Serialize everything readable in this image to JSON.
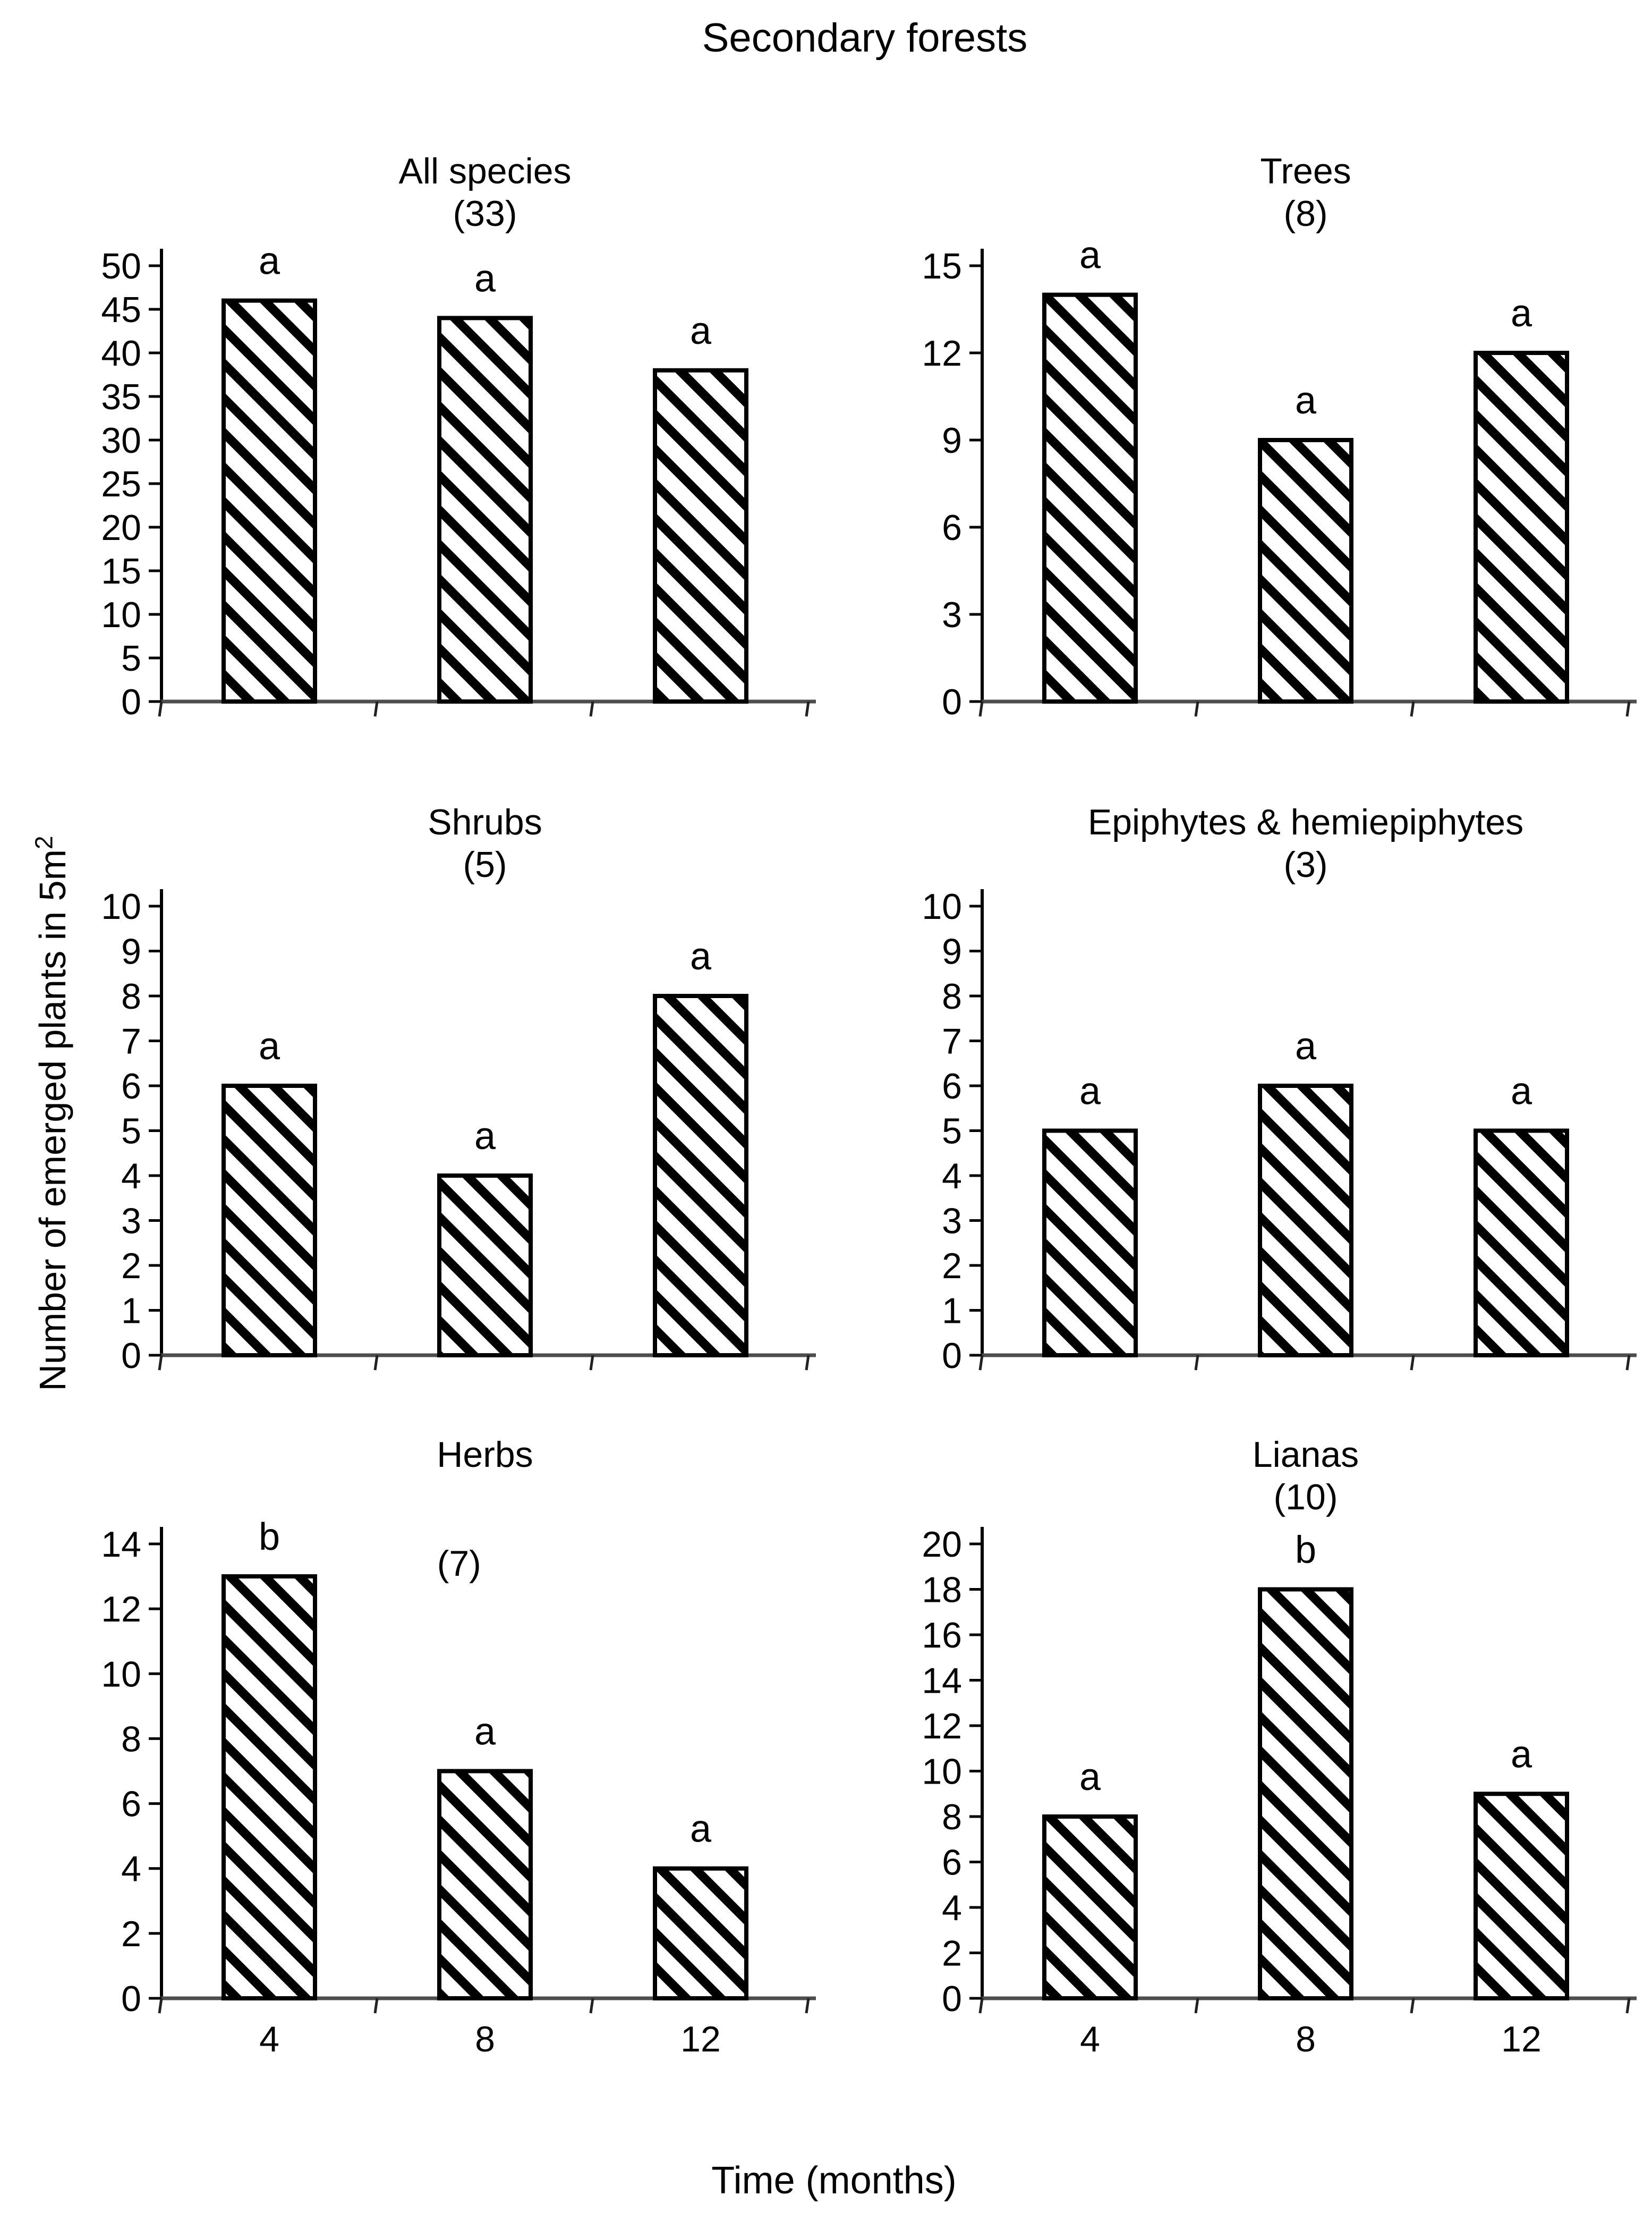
{
  "figure_title": "Secondary forests",
  "axes": {
    "y_label": {
      "text": "Number of emerged plants in 5m",
      "superscript": "2"
    },
    "x_label": "Time (months)"
  },
  "style": {
    "ink_color": "#000000",
    "paper_color": "#ffffff",
    "baseline_color": "#4d4d4d",
    "bar_fill": "diagonal-hatch"
  },
  "chart_data": [
    {
      "type": "bar",
      "title": "All species",
      "annotation_count": "(33)",
      "count_position": "above",
      "categories": [
        "4",
        "8",
        "12"
      ],
      "values": [
        46,
        44,
        38
      ],
      "significance_letters": [
        "a",
        "a",
        "a"
      ],
      "ylim": [
        0,
        50
      ],
      "ytick_step": 5,
      "y_tick_labels": [
        "0",
        "5",
        "10",
        "15",
        "20",
        "25",
        "30",
        "35",
        "40",
        "45",
        "50"
      ],
      "x_labels_visible": false
    },
    {
      "type": "bar",
      "title": "Trees",
      "annotation_count": "(8)",
      "count_position": "above",
      "categories": [
        "4",
        "8",
        "12"
      ],
      "values": [
        14,
        9,
        12
      ],
      "significance_letters": [
        "a",
        "a",
        "a"
      ],
      "ylim": [
        0,
        15
      ],
      "ytick_step": 3,
      "y_tick_labels": [
        "0",
        "3",
        "6",
        "9",
        "12",
        "15"
      ],
      "x_labels_visible": false
    },
    {
      "type": "bar",
      "title": "Shrubs",
      "annotation_count": "(5)",
      "count_position": "above",
      "categories": [
        "4",
        "8",
        "12"
      ],
      "values": [
        6,
        4,
        8
      ],
      "significance_letters": [
        "a",
        "a",
        "a"
      ],
      "ylim": [
        0,
        10
      ],
      "ytick_step": 1,
      "y_tick_labels": [
        "0",
        "1",
        "2",
        "3",
        "4",
        "5",
        "6",
        "7",
        "8",
        "9",
        "10"
      ],
      "x_labels_visible": false
    },
    {
      "type": "bar",
      "title": "Epiphytes & hemiepiphytes",
      "annotation_count": "(3)",
      "count_position": "above",
      "categories": [
        "4",
        "8",
        "12"
      ],
      "values": [
        5,
        6,
        5
      ],
      "significance_letters": [
        "a",
        "a",
        "a"
      ],
      "ylim": [
        0,
        10
      ],
      "ytick_step": 1,
      "y_tick_labels": [
        "0",
        "1",
        "2",
        "3",
        "4",
        "5",
        "6",
        "7",
        "8",
        "9",
        "10"
      ],
      "x_labels_visible": false
    },
    {
      "type": "bar",
      "title": "Herbs",
      "annotation_count": "(7)",
      "count_position": "in-plot",
      "categories": [
        "4",
        "8",
        "12"
      ],
      "values": [
        13,
        7,
        4
      ],
      "significance_letters": [
        "b",
        "a",
        "a"
      ],
      "ylim": [
        0,
        14
      ],
      "ytick_step": 2,
      "y_tick_labels": [
        "0",
        "2",
        "4",
        "6",
        "8",
        "10",
        "12",
        "14"
      ],
      "x_labels_visible": true
    },
    {
      "type": "bar",
      "title": "Lianas",
      "annotation_count": "(10)",
      "count_position": "above",
      "categories": [
        "4",
        "8",
        "12"
      ],
      "values": [
        8,
        18,
        9
      ],
      "significance_letters": [
        "a",
        "b",
        "a"
      ],
      "ylim": [
        0,
        20
      ],
      "ytick_step": 2,
      "y_tick_labels": [
        "0",
        "2",
        "4",
        "6",
        "8",
        "10",
        "12",
        "14",
        "16",
        "18",
        "20"
      ],
      "x_labels_visible": true
    }
  ]
}
